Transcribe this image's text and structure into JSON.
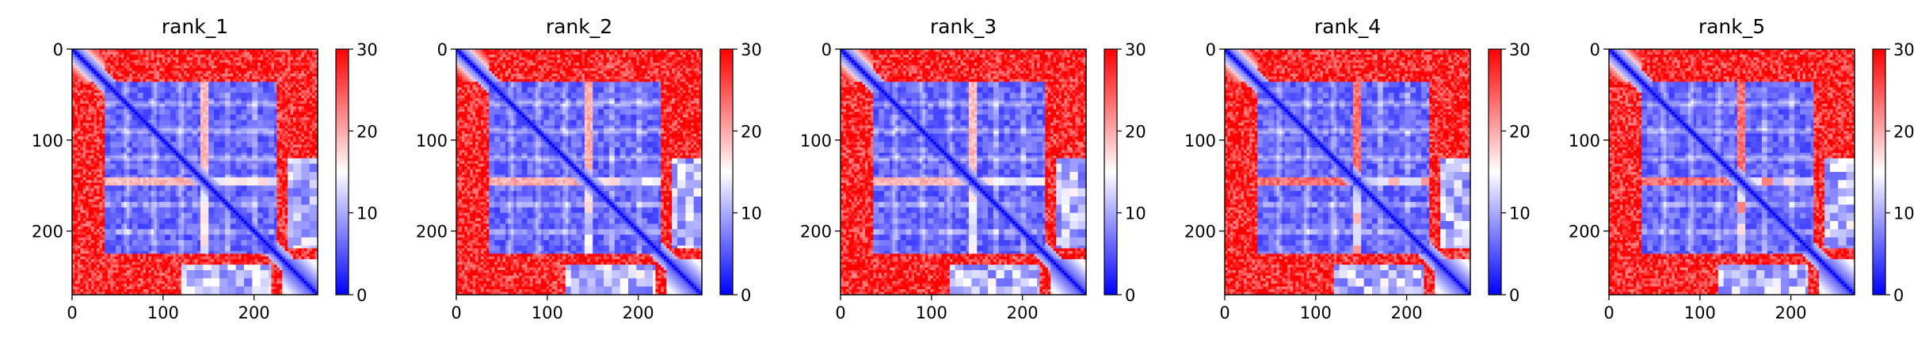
{
  "chart_data": [
    {
      "type": "heatmap",
      "title": "rank_1",
      "matrix_size": 270,
      "x_ticks": [
        0,
        100,
        200
      ],
      "y_ticks": [
        0,
        100,
        200
      ],
      "xlim": [
        0,
        270
      ],
      "ylim": [
        270,
        0
      ],
      "colorbar": {
        "range": [
          0,
          30
        ],
        "ticks": [
          0,
          10,
          20,
          30
        ],
        "colors": [
          "#0000ff",
          "#ffffff",
          "#ff0000"
        ]
      },
      "low_block": [
        35,
        225
      ],
      "domain_breaks": [
        140,
        150
      ],
      "line_rows": [
        60,
        90,
        120,
        170,
        200
      ],
      "break_contrast": 0.55
    },
    {
      "type": "heatmap",
      "title": "rank_2",
      "matrix_size": 270,
      "x_ticks": [
        0,
        100,
        200
      ],
      "y_ticks": [
        0,
        100,
        200
      ],
      "xlim": [
        0,
        270
      ],
      "ylim": [
        270,
        0
      ],
      "colorbar": {
        "range": [
          0,
          30
        ],
        "ticks": [
          0,
          10,
          20,
          30
        ],
        "colors": [
          "#0000ff",
          "#ffffff",
          "#ff0000"
        ]
      },
      "low_block": [
        35,
        225
      ],
      "domain_breaks": [
        140,
        150
      ],
      "line_rows": [
        60,
        90,
        120,
        170,
        200
      ],
      "break_contrast": 0.6
    },
    {
      "type": "heatmap",
      "title": "rank_3",
      "matrix_size": 270,
      "x_ticks": [
        0,
        100,
        200
      ],
      "y_ticks": [
        0,
        100,
        200
      ],
      "xlim": [
        0,
        270
      ],
      "ylim": [
        270,
        0
      ],
      "colorbar": {
        "range": [
          0,
          30
        ],
        "ticks": [
          0,
          10,
          20,
          30
        ],
        "colors": [
          "#0000ff",
          "#ffffff",
          "#ff0000"
        ]
      },
      "low_block": [
        35,
        225
      ],
      "domain_breaks": [
        140,
        150
      ],
      "line_rows": [
        60,
        90,
        120,
        170,
        200
      ],
      "break_contrast": 0.55
    },
    {
      "type": "heatmap",
      "title": "rank_4",
      "matrix_size": 270,
      "x_ticks": [
        0,
        100,
        200
      ],
      "y_ticks": [
        0,
        100,
        200
      ],
      "xlim": [
        0,
        270
      ],
      "ylim": [
        270,
        0
      ],
      "colorbar": {
        "range": [
          0,
          30
        ],
        "ticks": [
          0,
          10,
          20,
          30
        ],
        "colors": [
          "#0000ff",
          "#ffffff",
          "#ff0000"
        ]
      },
      "low_block": [
        35,
        225
      ],
      "domain_breaks": [
        140,
        150
      ],
      "line_rows": [
        60,
        90,
        120,
        170,
        200
      ],
      "break_contrast": 0.9
    },
    {
      "type": "heatmap",
      "title": "rank_5",
      "matrix_size": 270,
      "x_ticks": [
        0,
        100,
        200
      ],
      "y_ticks": [
        0,
        100,
        200
      ],
      "xlim": [
        0,
        270
      ],
      "ylim": [
        270,
        0
      ],
      "colorbar": {
        "range": [
          0,
          30
        ],
        "ticks": [
          0,
          10,
          20,
          30
        ],
        "colors": [
          "#0000ff",
          "#ffffff",
          "#ff0000"
        ]
      },
      "low_block": [
        35,
        225
      ],
      "domain_breaks": [
        140,
        150
      ],
      "line_rows": [
        60,
        90,
        120,
        170,
        200
      ],
      "break_contrast": 0.9
    }
  ]
}
